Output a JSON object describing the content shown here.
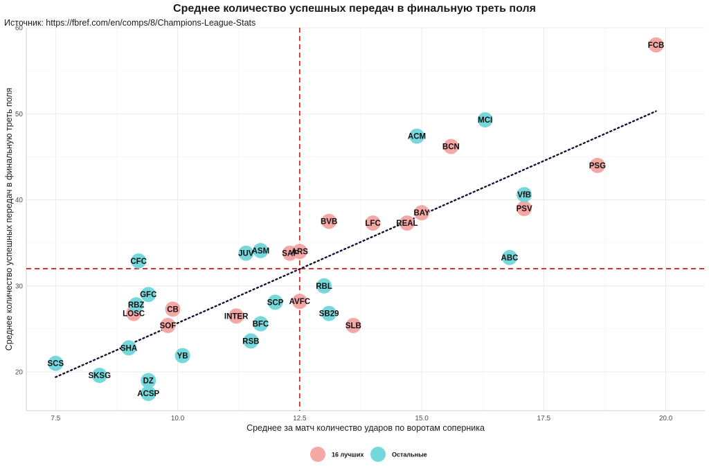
{
  "chart_data": {
    "type": "scatter",
    "title": "Среднее количество успешных передач в финальную треть поля",
    "subtitle": "Источник: https://fbref.com/en/comps/8/Champions-League-Stats",
    "xlabel": "Среднее за матч количество ударов по воротам соперника",
    "ylabel": "Среднее количество успешных передач в финальную треть поля",
    "xlim": [
      6.9,
      20.8
    ],
    "ylim": [
      15.5,
      60.0
    ],
    "xticks": [
      7.5,
      10.0,
      12.5,
      15.0,
      17.5,
      20.0
    ],
    "xtick_labels": [
      "7.5",
      "10.0",
      "12.5",
      "15.0",
      "17.5",
      "20.0"
    ],
    "yticks": [
      20,
      30,
      40,
      50,
      60
    ],
    "ytick_labels": [
      "20",
      "30",
      "40",
      "50",
      "60"
    ],
    "grid": true,
    "legend_position": "bottom",
    "reference_lines": {
      "vertical_x": 12.5,
      "horizontal_y": 32.0,
      "color": "#cc2a2a",
      "style": "dashed"
    },
    "trend_line": {
      "x": [
        7.5,
        19.8
      ],
      "y": [
        19.4,
        50.3
      ],
      "color": "#111133",
      "style": "dotted"
    },
    "series": [
      {
        "name": "16 лучших",
        "color": "#f4a7a4",
        "points": [
          {
            "label": "FCB",
            "x": 19.8,
            "y": 58.0
          },
          {
            "label": "PSG",
            "x": 18.6,
            "y": 44.0
          },
          {
            "label": "BCN",
            "x": 15.6,
            "y": 46.2
          },
          {
            "label": "PSV",
            "x": 17.1,
            "y": 39.0
          },
          {
            "label": "BAY",
            "x": 15.0,
            "y": 38.5
          },
          {
            "label": "REAL",
            "x": 14.7,
            "y": 37.3
          },
          {
            "label": "LFC",
            "x": 14.0,
            "y": 37.3
          },
          {
            "label": "BVB",
            "x": 13.1,
            "y": 37.5
          },
          {
            "label": "ARS",
            "x": 12.5,
            "y": 34.0
          },
          {
            "label": "SAF",
            "x": 12.3,
            "y": 33.8
          },
          {
            "label": "AVFC",
            "x": 12.5,
            "y": 28.2
          },
          {
            "label": "SLB",
            "x": 13.6,
            "y": 25.4
          },
          {
            "label": "INTER",
            "x": 11.2,
            "y": 26.5
          },
          {
            "label": "CB",
            "x": 9.9,
            "y": 27.3
          },
          {
            "label": "SOF",
            "x": 9.8,
            "y": 25.4
          },
          {
            "label": "LOSC",
            "x": 9.1,
            "y": 26.8
          }
        ]
      },
      {
        "name": "Остальные",
        "color": "#76d8dc",
        "points": [
          {
            "label": "MCI",
            "x": 16.3,
            "y": 49.3
          },
          {
            "label": "ACM",
            "x": 14.9,
            "y": 47.4
          },
          {
            "label": "VfB",
            "x": 17.1,
            "y": 40.6
          },
          {
            "label": "ABC",
            "x": 16.8,
            "y": 33.3
          },
          {
            "label": "ASM",
            "x": 11.7,
            "y": 34.1
          },
          {
            "label": "JUV",
            "x": 11.4,
            "y": 33.8
          },
          {
            "label": "CFC",
            "x": 9.2,
            "y": 32.9
          },
          {
            "label": "RBL",
            "x": 13.0,
            "y": 30.0
          },
          {
            "label": "SCP",
            "x": 12.0,
            "y": 28.1
          },
          {
            "label": "SB29",
            "x": 13.1,
            "y": 26.8
          },
          {
            "label": "BFC",
            "x": 11.7,
            "y": 25.6
          },
          {
            "label": "RSB",
            "x": 11.5,
            "y": 23.6
          },
          {
            "label": "GFC",
            "x": 9.4,
            "y": 29.0
          },
          {
            "label": "RBZ",
            "x": 9.15,
            "y": 27.8
          },
          {
            "label": "SHA",
            "x": 9.0,
            "y": 22.8
          },
          {
            "label": "YB",
            "x": 10.1,
            "y": 21.9
          },
          {
            "label": "SCS",
            "x": 7.5,
            "y": 21.0
          },
          {
            "label": "SKSG",
            "x": 8.4,
            "y": 19.6
          },
          {
            "label": "DZ",
            "x": 9.4,
            "y": 19.0
          },
          {
            "label": "ACSP",
            "x": 9.4,
            "y": 17.5
          }
        ]
      }
    ]
  }
}
